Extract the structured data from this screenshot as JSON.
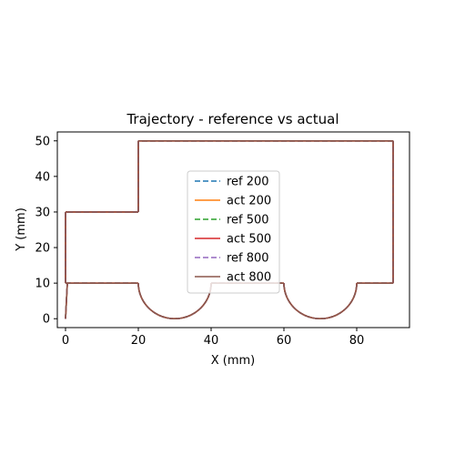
{
  "chart_data": {
    "type": "line",
    "title": "Trajectory - reference vs actual",
    "xlabel": "X (mm)",
    "ylabel": "Y (mm)",
    "xlim": [
      -2.25,
      94.5
    ],
    "ylim": [
      -2.5,
      52.5
    ],
    "xticks": [
      0,
      20,
      40,
      60,
      80
    ],
    "yticks": [
      0,
      10,
      20,
      30,
      40,
      50
    ],
    "grid": false,
    "legend_position": "center",
    "series": [
      {
        "name": "ref 200",
        "style": "dashed",
        "color": "#1f77b4"
      },
      {
        "name": "act 200",
        "style": "solid",
        "color": "#ff7f0e"
      },
      {
        "name": "ref 500",
        "style": "dashed",
        "color": "#2ca02c"
      },
      {
        "name": "act 500",
        "style": "solid",
        "color": "#d62728"
      },
      {
        "name": "ref 800",
        "style": "dashed",
        "color": "#9467bd"
      },
      {
        "name": "act 800",
        "style": "solid",
        "color": "#8c564b"
      }
    ],
    "path": {
      "points": [
        [
          0,
          0
        ],
        [
          0.5,
          10
        ],
        [
          20,
          10
        ],
        [
          20,
          10
        ]
      ],
      "segments": [
        {
          "kind": "line",
          "from": [
            0,
            0
          ],
          "to": [
            0.5,
            10
          ]
        },
        {
          "kind": "line",
          "from": [
            0,
            10
          ],
          "to": [
            20,
            10
          ]
        },
        {
          "kind": "arc",
          "center": [
            30,
            10
          ],
          "radius": 10
        },
        {
          "kind": "line",
          "from": [
            40,
            10
          ],
          "to": [
            60,
            10
          ]
        },
        {
          "kind": "arc",
          "center": [
            70,
            10
          ],
          "radius": 10
        },
        {
          "kind": "line",
          "from": [
            80,
            10
          ],
          "to": [
            90,
            10
          ]
        },
        {
          "kind": "line",
          "from": [
            90,
            10
          ],
          "to": [
            90,
            50
          ]
        },
        {
          "kind": "line",
          "from": [
            90,
            50
          ],
          "to": [
            20,
            50
          ]
        },
        {
          "kind": "line",
          "from": [
            20,
            50
          ],
          "to": [
            20,
            30
          ]
        },
        {
          "kind": "line",
          "from": [
            20,
            30
          ],
          "to": [
            0,
            30
          ]
        },
        {
          "kind": "line",
          "from": [
            0,
            30
          ],
          "to": [
            0,
            10
          ]
        }
      ]
    }
  }
}
